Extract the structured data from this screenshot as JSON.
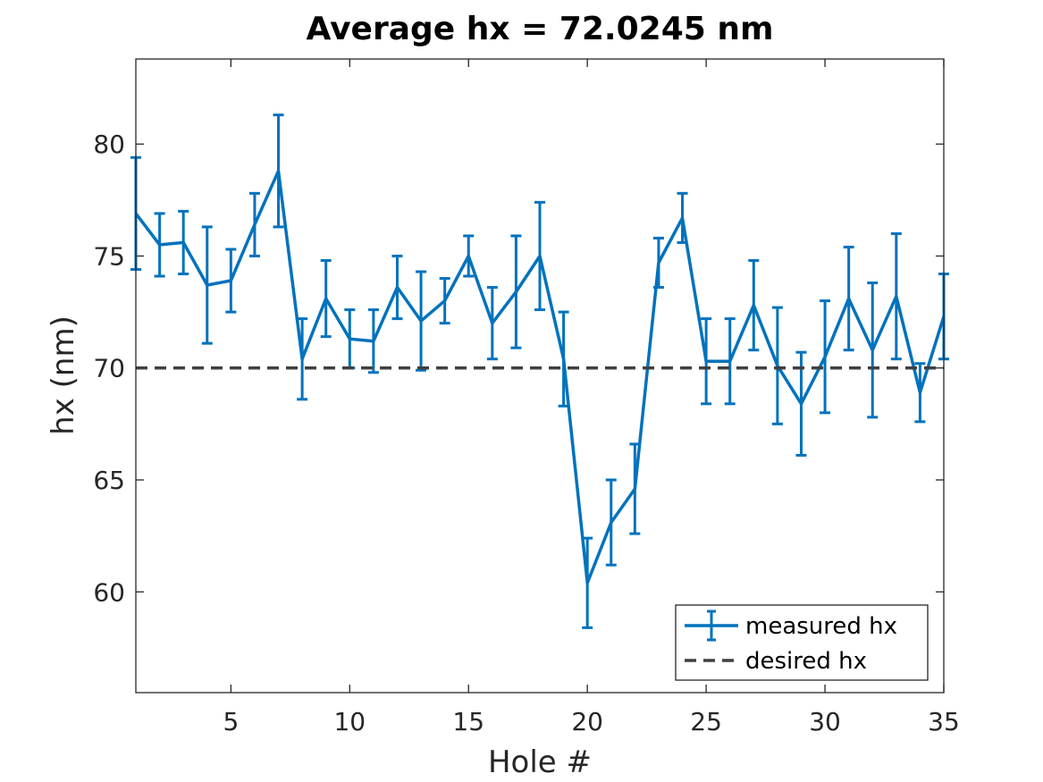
{
  "chart_data": {
    "type": "line",
    "title": "Average hx = 72.0245 nm",
    "xlabel": "Hole #",
    "ylabel": "hx (nm)",
    "xlim": [
      1,
      35
    ],
    "ylim": [
      55.5,
      83.8
    ],
    "xticks": [
      5,
      10,
      15,
      20,
      25,
      30,
      35
    ],
    "yticks": [
      60,
      65,
      70,
      75,
      80
    ],
    "grid": false,
    "legend_position": "bottom-right",
    "series": [
      {
        "name": "measured hx",
        "style": "solid",
        "color": "#0072BD",
        "errorbars": true,
        "x": [
          1,
          2,
          3,
          4,
          5,
          6,
          7,
          8,
          9,
          10,
          11,
          12,
          13,
          14,
          15,
          16,
          17,
          18,
          19,
          20,
          21,
          22,
          23,
          24,
          25,
          26,
          27,
          28,
          29,
          30,
          31,
          32,
          33,
          34,
          35
        ],
        "y": [
          76.9,
          75.5,
          75.6,
          73.7,
          73.9,
          76.4,
          78.8,
          70.4,
          73.1,
          71.3,
          71.2,
          73.6,
          72.1,
          73.0,
          75.0,
          72.0,
          73.4,
          75.0,
          70.4,
          60.4,
          63.1,
          64.6,
          74.7,
          76.7,
          70.3,
          70.3,
          72.8,
          70.1,
          68.4,
          70.5,
          73.1,
          70.8,
          73.2,
          68.9,
          72.3
        ],
        "err": [
          2.5,
          1.4,
          1.4,
          2.6,
          1.4,
          1.4,
          2.5,
          1.8,
          1.7,
          1.3,
          1.4,
          1.4,
          2.2,
          1.0,
          0.9,
          1.6,
          2.5,
          2.4,
          2.1,
          2.0,
          1.9,
          2.0,
          1.1,
          1.1,
          1.9,
          1.9,
          2.0,
          2.6,
          2.3,
          2.5,
          2.3,
          3.0,
          2.8,
          1.3,
          1.9
        ]
      },
      {
        "name": "desired hx",
        "style": "dashed",
        "color": "#404040",
        "x": [
          1,
          35
        ],
        "y": [
          70,
          70
        ]
      }
    ]
  }
}
